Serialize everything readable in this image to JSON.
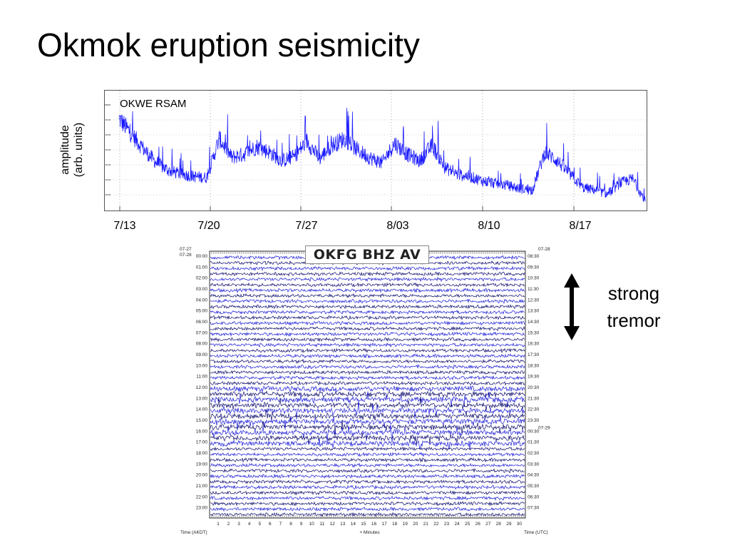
{
  "slide": {
    "title": "Okmok eruption seismicity"
  },
  "chart_data": [
    {
      "type": "line",
      "title": "",
      "label_inset": "OKWE RSAM",
      "ylabel": "amplitude (arb. units)",
      "ylabel_lines": [
        "amplitude",
        "(arb. units)"
      ],
      "xlabel": "",
      "x_tick_labels": [
        "7/13",
        "7/20",
        "7/27",
        "8/03",
        "8/10",
        "8/17"
      ],
      "x_range_days_from_first_tick": [
        -1,
        52
      ],
      "line_color": "#1a1aff",
      "grid": "dotted vertical and short horizontal ticks",
      "series": [
        {
          "x": [
            "7/12",
            "7/13",
            "7/14",
            "7/15",
            "7/16",
            "7/17",
            "7/18",
            "7/19",
            "7/20",
            "7/21",
            "7/22",
            "7/23",
            "7/24",
            "7/25",
            "7/26",
            "7/27",
            "7/28",
            "7/29",
            "7/30",
            "7/31",
            "8/01",
            "8/02",
            "8/03",
            "8/04",
            "8/05",
            "8/06",
            "8/07",
            "8/08",
            "8/09",
            "8/10",
            "8/11",
            "8/12",
            "8/13",
            "8/14",
            "8/15",
            "8/16",
            "8/17",
            "8/18",
            "8/19",
            "8/20",
            "8/21",
            "8/22",
            "8/23"
          ],
          "values": [
            0.8,
            0.66,
            0.52,
            0.4,
            0.33,
            0.3,
            0.28,
            0.27,
            0.62,
            0.45,
            0.48,
            0.55,
            0.5,
            0.42,
            0.46,
            0.6,
            0.44,
            0.56,
            0.62,
            0.52,
            0.45,
            0.4,
            0.58,
            0.48,
            0.42,
            0.56,
            0.36,
            0.3,
            0.28,
            0.24,
            0.22,
            0.2,
            0.17,
            0.16,
            0.5,
            0.42,
            0.3,
            0.18,
            0.16,
            0.12,
            0.22,
            0.26,
            0.06
          ]
        }
      ]
    },
    {
      "type": "heatmap",
      "title": "OKFG BHZ AV",
      "description_label": "helicorder",
      "left_dates": [
        "07-27",
        "07-28"
      ],
      "right_dates": [
        "07-28",
        "07-29"
      ],
      "left_time_labels": [
        "00:00",
        "01:00",
        "02:00",
        "03:00",
        "04:00",
        "05:00",
        "06:00",
        "07:00",
        "08:00",
        "09:00",
        "10:00",
        "11:00",
        "12:00",
        "13:00",
        "14:00",
        "15:00",
        "16:00",
        "17:00",
        "18:00",
        "19:00",
        "20:00",
        "21:00",
        "22:00",
        "23:00"
      ],
      "right_time_labels": [
        "08:30",
        "09:30",
        "10:30",
        "11:30",
        "12:30",
        "13:30",
        "14:30",
        "15:30",
        "16:30",
        "17:30",
        "18:30",
        "19:30",
        "20:30",
        "21:30",
        "22:30",
        "23:30",
        "00:30",
        "01:30",
        "02:30",
        "03:30",
        "04:30",
        "05:30",
        "06:30",
        "07:30"
      ],
      "x_tick_labels": [
        "1",
        "2",
        "3",
        "4",
        "5",
        "6",
        "7",
        "8",
        "9",
        "10",
        "11",
        "12",
        "13",
        "14",
        "15",
        "16",
        "17",
        "18",
        "19",
        "20",
        "21",
        "22",
        "23",
        "24",
        "25",
        "26",
        "27",
        "28",
        "29",
        "30"
      ],
      "xlabel_left": "Time (AKDT)",
      "xlabel_center": "+ Minutes",
      "xlabel_right": "Time (UTC)",
      "trace_colors": [
        "#1a1ad8",
        "#0a0a6a"
      ]
    }
  ],
  "annotation": {
    "line1": "strong",
    "line2": "tremor"
  }
}
